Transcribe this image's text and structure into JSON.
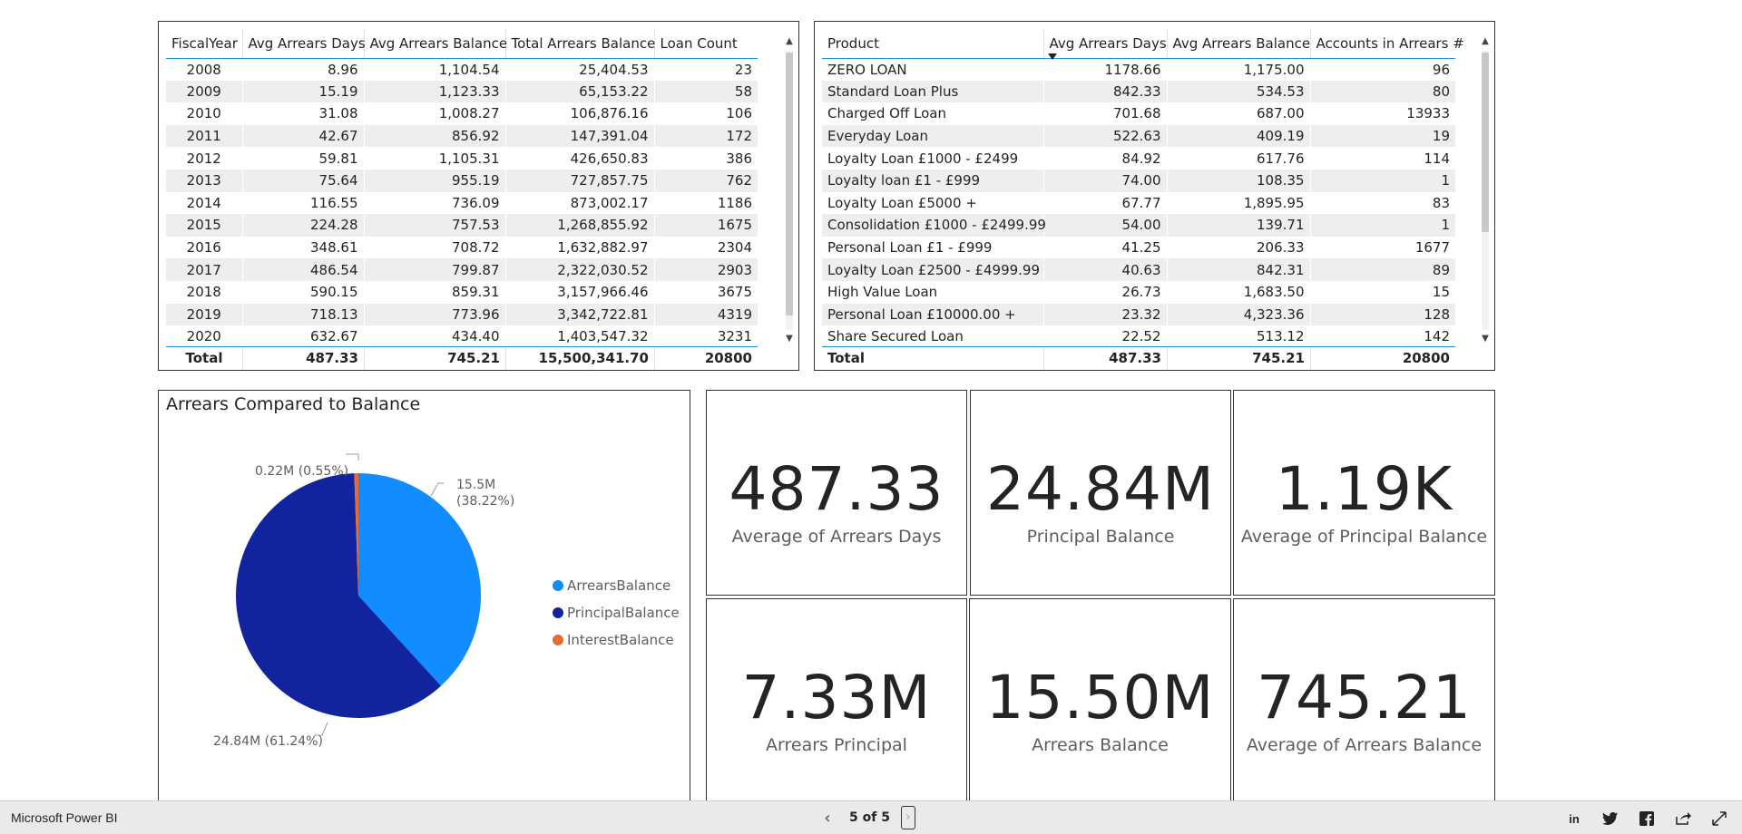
{
  "colors": {
    "arrears": "#118DFF",
    "principal": "#12239E",
    "interest": "#E66C37",
    "accent": "#1f8fd6"
  },
  "fiscal_table": {
    "columns": [
      "FiscalYear",
      "Avg Arrears Days",
      "Avg Arrears Balance",
      "Total Arrears Balance",
      "Loan Count"
    ],
    "rows": [
      [
        "2008",
        "8.96",
        "1,104.54",
        "25,404.53",
        "23"
      ],
      [
        "2009",
        "15.19",
        "1,123.33",
        "65,153.22",
        "58"
      ],
      [
        "2010",
        "31.08",
        "1,008.27",
        "106,876.16",
        "106"
      ],
      [
        "2011",
        "42.67",
        "856.92",
        "147,391.04",
        "172"
      ],
      [
        "2012",
        "59.81",
        "1,105.31",
        "426,650.83",
        "386"
      ],
      [
        "2013",
        "75.64",
        "955.19",
        "727,857.75",
        "762"
      ],
      [
        "2014",
        "116.55",
        "736.09",
        "873,002.17",
        "1186"
      ],
      [
        "2015",
        "224.28",
        "757.53",
        "1,268,855.92",
        "1675"
      ],
      [
        "2016",
        "348.61",
        "708.72",
        "1,632,882.97",
        "2304"
      ],
      [
        "2017",
        "486.54",
        "799.87",
        "2,322,030.52",
        "2903"
      ],
      [
        "2018",
        "590.15",
        "859.31",
        "3,157,966.46",
        "3675"
      ],
      [
        "2019",
        "718.13",
        "773.96",
        "3,342,722.81",
        "4319"
      ],
      [
        "2020",
        "632.67",
        "434.40",
        "1,403,547.32",
        "3231"
      ]
    ],
    "total": [
      "Total",
      "487.33",
      "745.21",
      "15,500,341.70",
      "20800"
    ]
  },
  "product_table": {
    "columns": [
      "Product",
      "Avg Arrears Days",
      "Avg Arrears Balance",
      "Accounts in Arrears #"
    ],
    "rows": [
      [
        "ZERO LOAN",
        "1178.66",
        "1,175.00",
        "96"
      ],
      [
        "Standard Loan Plus",
        "842.33",
        "534.53",
        "80"
      ],
      [
        "Charged Off Loan",
        "701.68",
        "687.00",
        "13933"
      ],
      [
        "Everyday Loan",
        "522.63",
        "409.19",
        "19"
      ],
      [
        "Loyalty Loan £1000 - £2499",
        "84.92",
        "617.76",
        "114"
      ],
      [
        "Loyalty loan £1 - £999",
        "74.00",
        "108.35",
        "1"
      ],
      [
        "Loyalty Loan £5000 +",
        "67.77",
        "1,895.95",
        "83"
      ],
      [
        "Consolidation £1000 - £2499.99",
        "54.00",
        "139.71",
        "1"
      ],
      [
        "Personal Loan £1 - £999",
        "41.25",
        "206.33",
        "1677"
      ],
      [
        "Loyalty Loan £2500 - £4999.99",
        "40.63",
        "842.31",
        "89"
      ],
      [
        "High Value Loan",
        "26.73",
        "1,683.50",
        "15"
      ],
      [
        "Personal Loan £10000.00 +",
        "23.32",
        "4,323.36",
        "128"
      ],
      [
        "Share Secured Loan",
        "22.52",
        "513.12",
        "142"
      ]
    ],
    "total": [
      "Total",
      "487.33",
      "745.21",
      "20800"
    ]
  },
  "pie": {
    "title": "Arrears Compared to Balance",
    "label_arrears_value": "15.5M",
    "label_arrears_pct": "(38.22%)",
    "label_principal": "24.84M (61.24%)",
    "label_interest": "0.22M (0.55%)",
    "legend": [
      "ArrearsBalance",
      "PrincipalBalance",
      "InterestBalance"
    ]
  },
  "chart_data": {
    "type": "pie",
    "title": "Arrears Compared to Balance",
    "categories": [
      "ArrearsBalance",
      "PrincipalBalance",
      "InterestBalance"
    ],
    "values": [
      15.5,
      24.84,
      0.22
    ],
    "percents": [
      38.22,
      61.24,
      0.55
    ],
    "unit": "M",
    "legend_position": "right"
  },
  "cards": [
    {
      "value": "487.33",
      "label": "Average of Arrears Days"
    },
    {
      "value": "24.84M",
      "label": "Principal Balance"
    },
    {
      "value": "1.19K",
      "label": "Average of Principal Balance"
    },
    {
      "value": "7.33M",
      "label": "Arrears Principal"
    },
    {
      "value": "15.50M",
      "label": "Arrears Balance"
    },
    {
      "value": "745.21",
      "label": "Average of Arrears Balance"
    }
  ],
  "footer": {
    "brand": "Microsoft Power BI",
    "page_indicator": "5 of 5",
    "share_icons": [
      "linkedin-icon",
      "twitter-icon",
      "facebook-icon",
      "share-icon",
      "fullscreen-icon"
    ]
  }
}
